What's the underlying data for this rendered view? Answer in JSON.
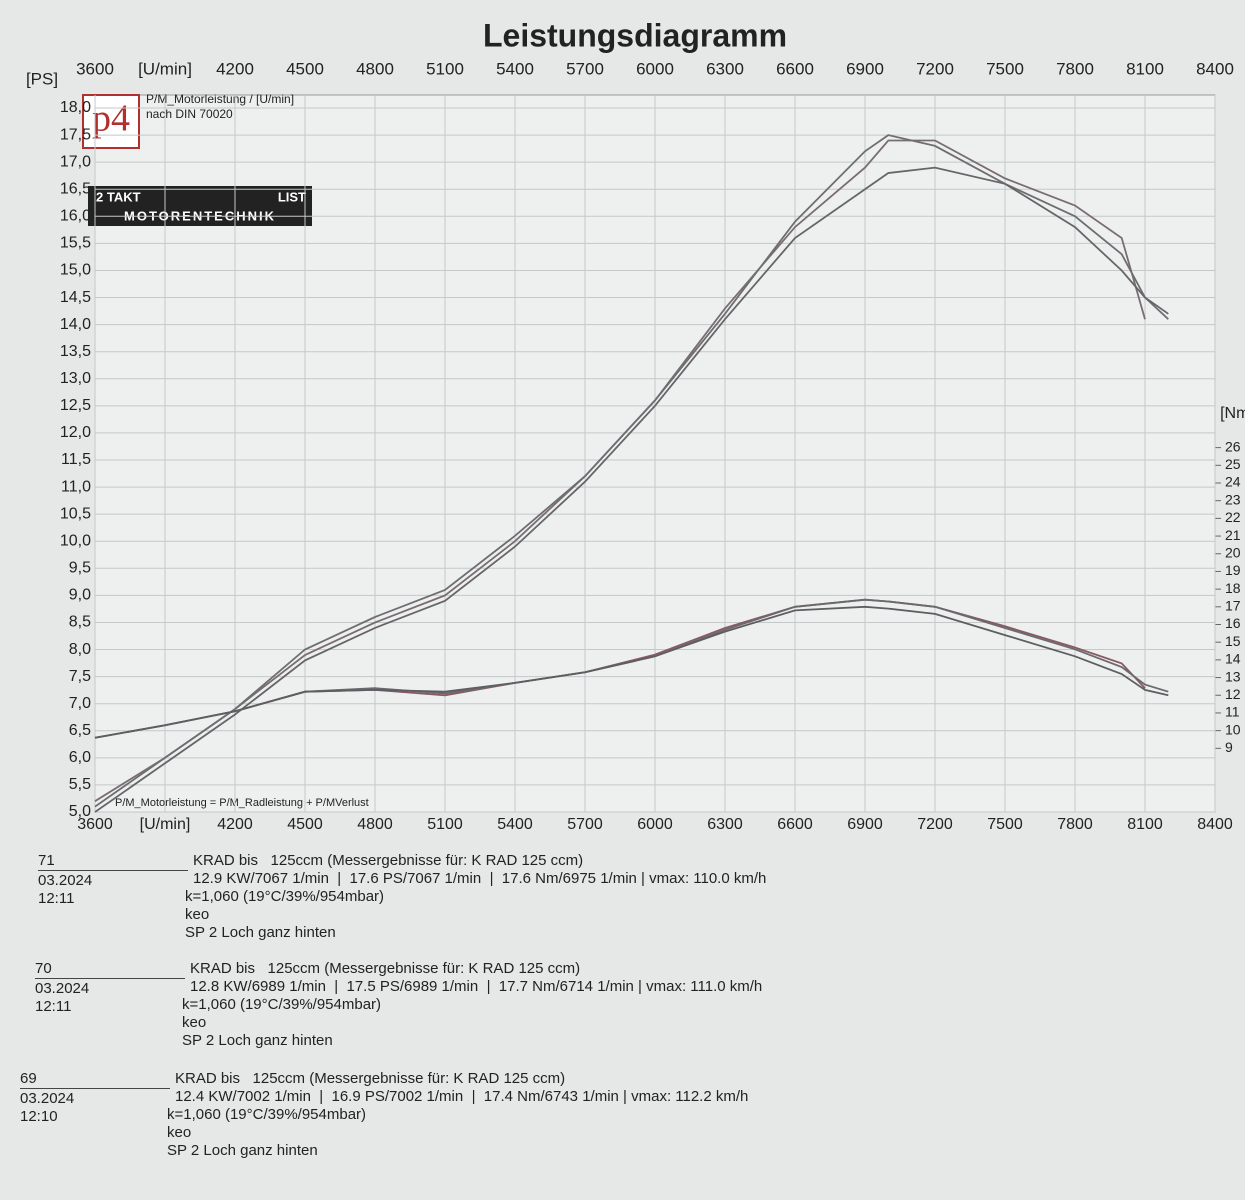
{
  "chart_data": {
    "type": "line",
    "title": "Leistungsdiagramm",
    "y_label": "[PS]",
    "y2_label": "[Nm]",
    "annotations": {
      "logo": "p4",
      "caption": "P/M_Motorleistung / [U/min]",
      "norm": "nach DIN 70020",
      "brand_left": "2 TAKT",
      "brand_right": "LIST",
      "brand_bottom": "MOTORENTECHNIK",
      "formula": "P/M_Motorleistung = P/M_Radleistung + P/MVerlust"
    },
    "x": [
      3600,
      3900,
      4200,
      4500,
      4800,
      5100,
      5400,
      5700,
      6000,
      6300,
      6600,
      6900,
      7000,
      7200,
      7500,
      7800,
      8000,
      8100,
      8200
    ],
    "xlim": [
      3600,
      8400
    ],
    "xticks": [
      3600,
      {
        "value": 3900,
        "label": "[U/min]"
      },
      4200,
      4500,
      4800,
      5100,
      5400,
      5700,
      6000,
      6300,
      6600,
      6900,
      7200,
      7500,
      7800,
      8100,
      8400
    ],
    "ylim": [
      5,
      18
    ],
    "yticks": [
      {
        "value": 5,
        "label": "5,0"
      },
      {
        "value": 5.5,
        "label": "5,5"
      },
      {
        "value": 6,
        "label": "6,0"
      },
      {
        "value": 6.5,
        "label": "6,5"
      },
      {
        "value": 7,
        "label": "7,0"
      },
      {
        "value": 7.5,
        "label": "7,5"
      },
      {
        "value": 8,
        "label": "8,0"
      },
      {
        "value": 8.5,
        "label": "8,5"
      },
      {
        "value": 9,
        "label": "9,0"
      },
      {
        "value": 9.5,
        "label": "9,5"
      },
      {
        "value": 10,
        "label": "10,0"
      },
      {
        "value": 10.5,
        "label": "10,5"
      },
      {
        "value": 11,
        "label": "11,0"
      },
      {
        "value": 11.5,
        "label": "11,5"
      },
      {
        "value": 12,
        "label": "12,0"
      },
      {
        "value": 12.5,
        "label": "12,5"
      },
      {
        "value": 13,
        "label": "13,0"
      },
      {
        "value": 13.5,
        "label": "13,5"
      },
      {
        "value": 14,
        "label": "14,0"
      },
      {
        "value": 14.5,
        "label": "14,5"
      },
      {
        "value": 15,
        "label": "15,0"
      },
      {
        "value": 15.5,
        "label": "15,5"
      },
      {
        "value": 16,
        "label": "16,0"
      },
      {
        "value": 16.5,
        "label": "16,5"
      },
      {
        "value": 17,
        "label": "17,0"
      },
      {
        "value": 17.5,
        "label": "17,5"
      },
      {
        "value": 18,
        "label": "18,0"
      }
    ],
    "y2lim": [
      5.4,
      45.2
    ],
    "y2ticks": [
      9,
      10,
      11,
      12,
      13,
      14,
      15,
      16,
      17,
      18,
      19,
      20,
      21,
      22,
      23,
      24,
      25,
      26
    ],
    "grid": true,
    "series": [
      {
        "color": "#7a6d70",
        "values": [
          5.2,
          6.0,
          6.9,
          7.9,
          8.5,
          9.0,
          10.0,
          11.2,
          12.6,
          14.3,
          15.8,
          16.9,
          17.4,
          17.4,
          16.7,
          16.2,
          15.6,
          14.1,
          null
        ]
      },
      {
        "color": "#6e6e72",
        "values": [
          5.1,
          6.0,
          6.9,
          8.0,
          8.6,
          9.1,
          10.1,
          11.2,
          12.6,
          14.2,
          15.9,
          17.2,
          17.5,
          17.3,
          16.6,
          16.0,
          15.3,
          14.5,
          14.1
        ]
      },
      {
        "color": "#666669",
        "values": [
          5.0,
          5.9,
          6.8,
          7.8,
          8.4,
          8.9,
          9.9,
          11.1,
          12.5,
          14.1,
          15.6,
          16.5,
          16.8,
          16.9,
          16.6,
          15.8,
          15.0,
          14.5,
          14.2
        ]
      },
      {
        "color": "#8a5a60",
        "axis": "y2",
        "values": [
          9.6,
          10.3,
          11.1,
          12.2,
          12.3,
          12.0,
          12.7,
          13.3,
          14.3,
          15.8,
          17.0,
          17.4,
          17.3,
          17.0,
          15.9,
          14.7,
          13.8,
          12.4,
          null
        ]
      },
      {
        "color": "#6a6a6e",
        "axis": "y2",
        "values": [
          9.6,
          10.3,
          11.1,
          12.2,
          12.4,
          12.1,
          12.7,
          13.3,
          14.2,
          15.7,
          17.0,
          17.4,
          17.3,
          17.0,
          15.8,
          14.6,
          13.6,
          12.6,
          12.2
        ]
      },
      {
        "color": "#5e5e62",
        "axis": "y2",
        "values": [
          9.6,
          10.3,
          11.1,
          12.2,
          12.3,
          12.2,
          12.7,
          13.3,
          14.2,
          15.6,
          16.8,
          17.0,
          16.9,
          16.6,
          15.4,
          14.2,
          13.2,
          12.3,
          12.0
        ]
      }
    ]
  },
  "runs": [
    {
      "id": "71",
      "date": "03.2024  12:11",
      "lines": [
        "KRAD bis   125ccm (Messergebnisse für: K RAD 125 ccm)",
        "12.9 KW/7067 1/min  |  17.6 PS/7067 1/min  |  17.6 Nm/6975 1/min | vmax: 110.0 km/h",
        "k=1,060 (19°C/39%/954mbar)",
        "keo",
        "SP 2 Loch ganz hinten"
      ]
    },
    {
      "id": "70",
      "date": "03.2024  12:11",
      "lines": [
        "KRAD bis   125ccm (Messergebnisse für: K RAD 125 ccm)",
        "12.8 KW/6989 1/min  |  17.5 PS/6989 1/min  |  17.7 Nm/6714 1/min | vmax: 111.0 km/h",
        "k=1,060 (19°C/39%/954mbar)",
        "keo",
        "SP 2 Loch ganz hinten"
      ]
    },
    {
      "id": "69",
      "date": "03.2024  12:10",
      "lines": [
        "KRAD bis   125ccm (Messergebnisse für: K RAD 125 ccm)",
        "12.4 KW/7002 1/min  |  16.9 PS/7002 1/min  |  17.4 Nm/6743 1/min | vmax: 112.2 km/h",
        "k=1,060 (19°C/39%/954mbar)",
        "keo",
        "SP 2 Loch ganz hinten"
      ]
    }
  ]
}
